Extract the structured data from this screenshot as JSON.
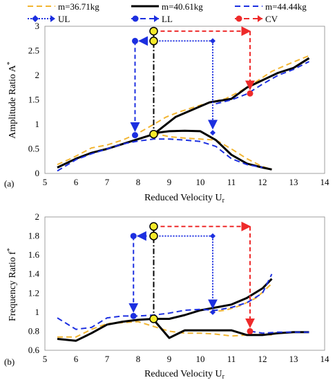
{
  "legend": {
    "m1": "m=36.71kg",
    "m2": "m=40.61kg",
    "m3": "m=44.44kg",
    "ul": "UL",
    "ll": "LL",
    "cv": "CV"
  },
  "colors": {
    "m1": "#f2b531",
    "m2": "#000000",
    "m3": "#1c2fe0",
    "ul": "#1c2fe0",
    "ll": "#1c2fe0",
    "cv": "#ee2a2a",
    "marker_fill": "#f6ea2a"
  },
  "chart_data": [
    {
      "type": "line",
      "panel": "(a)",
      "xlabel": "Reduced Velocity U",
      "xlabel_sub": "r",
      "ylabel": "Amplitude Ratio A",
      "ylabel_sup": "*",
      "xlim": [
        5,
        14
      ],
      "ylim": [
        0,
        3
      ],
      "xticks": [
        "5",
        "6",
        "7",
        "8",
        "9",
        "10",
        "11",
        "12",
        "13",
        "14"
      ],
      "yticks": [
        "0",
        "0.5",
        "1",
        "1.5",
        "2",
        "2.5",
        "3"
      ],
      "series": [
        {
          "name": "m=36.71kg",
          "key": "m1",
          "style": "dash",
          "x": [
            5.4,
            5.9,
            6.5,
            7.0,
            7.5,
            8.0,
            8.5,
            8.9,
            9.3,
            9.8,
            10.3,
            10.8,
            11.3,
            11.8,
            12.3,
            12.8,
            13.5
          ],
          "y": [
            0.18,
            0.32,
            0.52,
            0.58,
            0.68,
            0.82,
            1.0,
            1.15,
            1.25,
            1.35,
            1.45,
            1.52,
            1.68,
            1.87,
            2.08,
            2.22,
            2.4
          ]
        },
        {
          "name": "",
          "key": "m1",
          "style": "dash",
          "x": [
            8.5,
            9.0,
            9.5,
            10.0,
            10.5,
            11.0,
            11.5,
            12.0,
            12.3
          ],
          "y": [
            0.82,
            0.75,
            0.72,
            0.7,
            0.68,
            0.5,
            0.3,
            0.14,
            0.08
          ]
        },
        {
          "name": "m=40.61kg",
          "key": "m2",
          "style": "solid",
          "x": [
            5.4,
            6.0,
            6.5,
            7.0,
            7.5,
            8.0,
            8.5,
            9.2,
            10.3,
            11.0,
            11.5,
            12.0,
            12.5,
            13.0,
            13.5
          ],
          "y": [
            0.12,
            0.3,
            0.42,
            0.5,
            0.6,
            0.7,
            0.8,
            1.15,
            1.45,
            1.52,
            1.75,
            1.9,
            2.05,
            2.15,
            2.35
          ]
        },
        {
          "name": "",
          "key": "m2",
          "style": "solid",
          "x": [
            8.5,
            9.0,
            9.5,
            10.0,
            10.5,
            11.0,
            11.5,
            12.0,
            12.3
          ],
          "y": [
            0.82,
            0.86,
            0.87,
            0.86,
            0.68,
            0.38,
            0.2,
            0.12,
            0.08
          ]
        },
        {
          "name": "m=44.44kg",
          "key": "m3",
          "style": "dash",
          "x": [
            5.4,
            6.0,
            6.5,
            7.0,
            7.5,
            8.0,
            8.5,
            9.0,
            9.5,
            10.0,
            10.5,
            11.0,
            11.5,
            12.0
          ],
          "y": [
            0.05,
            0.28,
            0.4,
            0.5,
            0.6,
            0.66,
            0.7,
            0.7,
            0.68,
            0.65,
            0.55,
            0.3,
            0.18,
            0.12
          ]
        },
        {
          "name": "",
          "key": "m3",
          "style": "dash",
          "x": [
            10.5,
            11.0,
            11.5,
            12.0,
            12.5,
            13.0,
            13.5
          ],
          "y": [
            1.42,
            1.5,
            1.62,
            1.82,
            2.0,
            2.12,
            2.28
          ]
        }
      ],
      "markers": {
        "ll": {
          "x": 7.9,
          "y_top": 2.7,
          "y_point": 0.78
        },
        "ul": {
          "x": 10.4,
          "y_top": 2.7,
          "y_point": 0.83
        },
        "center": {
          "x": 8.5,
          "y_top": 2.9,
          "y_mid": 2.7,
          "y_point": 0.8
        },
        "cv": {
          "x": 11.6,
          "y_top": 2.9,
          "y_point": 1.63
        }
      }
    },
    {
      "type": "line",
      "panel": "(b)",
      "xlabel": "Reduced Velocity U",
      "xlabel_sub": "r",
      "ylabel": "Frequency Ratio f",
      "ylabel_sup": "*",
      "xlim": [
        5,
        14
      ],
      "ylim": [
        0.6,
        2
      ],
      "xticks": [
        "5",
        "6",
        "7",
        "8",
        "9",
        "10",
        "11",
        "12",
        "13",
        "14"
      ],
      "yticks": [
        "0.6",
        "0.8",
        "1",
        "1.2",
        "1.4",
        "1.6",
        "1.8",
        "2"
      ],
      "series": [
        {
          "name": "m=36.71kg",
          "key": "m1",
          "style": "dash",
          "x": [
            5.4,
            6.0,
            6.5,
            7.0,
            7.5,
            8.0,
            8.5,
            9.0,
            9.5,
            10.0,
            10.5,
            11.0,
            11.5,
            12.0,
            12.3
          ],
          "y": [
            0.74,
            0.74,
            0.82,
            0.88,
            0.89,
            0.9,
            0.85,
            0.8,
            0.78,
            0.78,
            0.77,
            0.75,
            0.76,
            0.77,
            0.76
          ]
        },
        {
          "name": "",
          "key": "m1",
          "style": "dash",
          "x": [
            10.3,
            10.8,
            11.3,
            11.8,
            12.3
          ],
          "y": [
            1.0,
            1.02,
            1.07,
            1.15,
            1.3
          ]
        },
        {
          "name": "m=40.61kg",
          "key": "m2",
          "style": "solid",
          "x": [
            5.4,
            6.0,
            6.5,
            7.0,
            7.5,
            8.0,
            8.5,
            9.0,
            9.5,
            10.0,
            10.5,
            11.0,
            11.5,
            12.0,
            12.3
          ],
          "y": [
            0.72,
            0.7,
            0.78,
            0.87,
            0.9,
            0.92,
            0.93,
            0.93,
            0.97,
            1.02,
            1.05,
            1.08,
            1.15,
            1.25,
            1.35
          ]
        },
        {
          "name": "",
          "key": "m2",
          "style": "solid",
          "x": [
            8.5,
            9.0,
            9.5,
            10.0,
            10.5,
            11.0,
            11.5,
            12.0,
            12.5,
            13.0,
            13.5
          ],
          "y": [
            0.92,
            0.73,
            0.81,
            0.81,
            0.81,
            0.81,
            0.76,
            0.76,
            0.78,
            0.79,
            0.79
          ]
        },
        {
          "name": "m=44.44kg",
          "key": "m3",
          "style": "dash",
          "x": [
            5.4,
            6.0,
            6.5,
            7.0,
            7.5,
            8.0,
            8.5,
            9.0,
            9.5,
            10.0,
            10.5,
            11.0,
            11.5,
            12.0,
            12.3
          ],
          "y": [
            0.94,
            0.82,
            0.84,
            0.94,
            0.96,
            0.96,
            0.97,
            0.99,
            1.02,
            1.03,
            1.02,
            1.05,
            1.1,
            1.2,
            1.4
          ]
        },
        {
          "name": "",
          "key": "m3",
          "style": "dash",
          "x": [
            11.6,
            12.0,
            12.5,
            13.0,
            13.5
          ],
          "y": [
            0.8,
            0.78,
            0.79,
            0.79,
            0.79
          ]
        }
      ],
      "markers": {
        "ll": {
          "x": 7.85,
          "y_top": 1.8,
          "y_point": 0.96
        },
        "ul": {
          "x": 10.4,
          "y_top": 1.8,
          "y_point": 1.0
        },
        "center": {
          "x": 8.5,
          "y_top": 1.9,
          "y_mid": 1.8,
          "y_point": 0.93
        },
        "cv": {
          "x": 11.6,
          "y_top": 1.9,
          "y_point": 0.8
        }
      }
    }
  ]
}
